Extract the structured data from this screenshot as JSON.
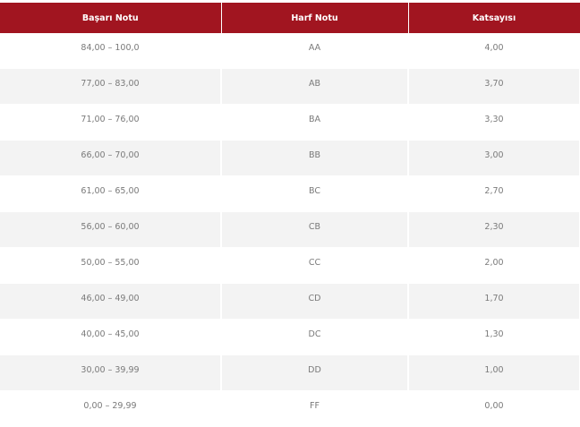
{
  "table": {
    "headers": [
      "Başarı Notu",
      "Harf Notu",
      "Katsayısı"
    ],
    "header_color": "#a11520",
    "rows": [
      [
        "84,00 – 100,0",
        "AA",
        "4,00"
      ],
      [
        "77,00 – 83,00",
        "AB",
        "3,70"
      ],
      [
        "71,00 – 76,00",
        "BA",
        "3,30"
      ],
      [
        "66,00 – 70,00",
        "BB",
        "3,00"
      ],
      [
        "61,00 – 65,00",
        "BC",
        "2,70"
      ],
      [
        "56,00 – 60,00",
        "CB",
        "2,30"
      ],
      [
        "50,00 – 55,00",
        "CC",
        "2,00"
      ],
      [
        "46,00 – 49,00",
        "CD",
        "1,70"
      ],
      [
        "40,00 – 45,00",
        "DC",
        "1,30"
      ],
      [
        "30,00 – 39,99",
        "DD",
        "1,00"
      ],
      [
        "0,00 – 29,99",
        "FF",
        "0,00"
      ]
    ]
  }
}
